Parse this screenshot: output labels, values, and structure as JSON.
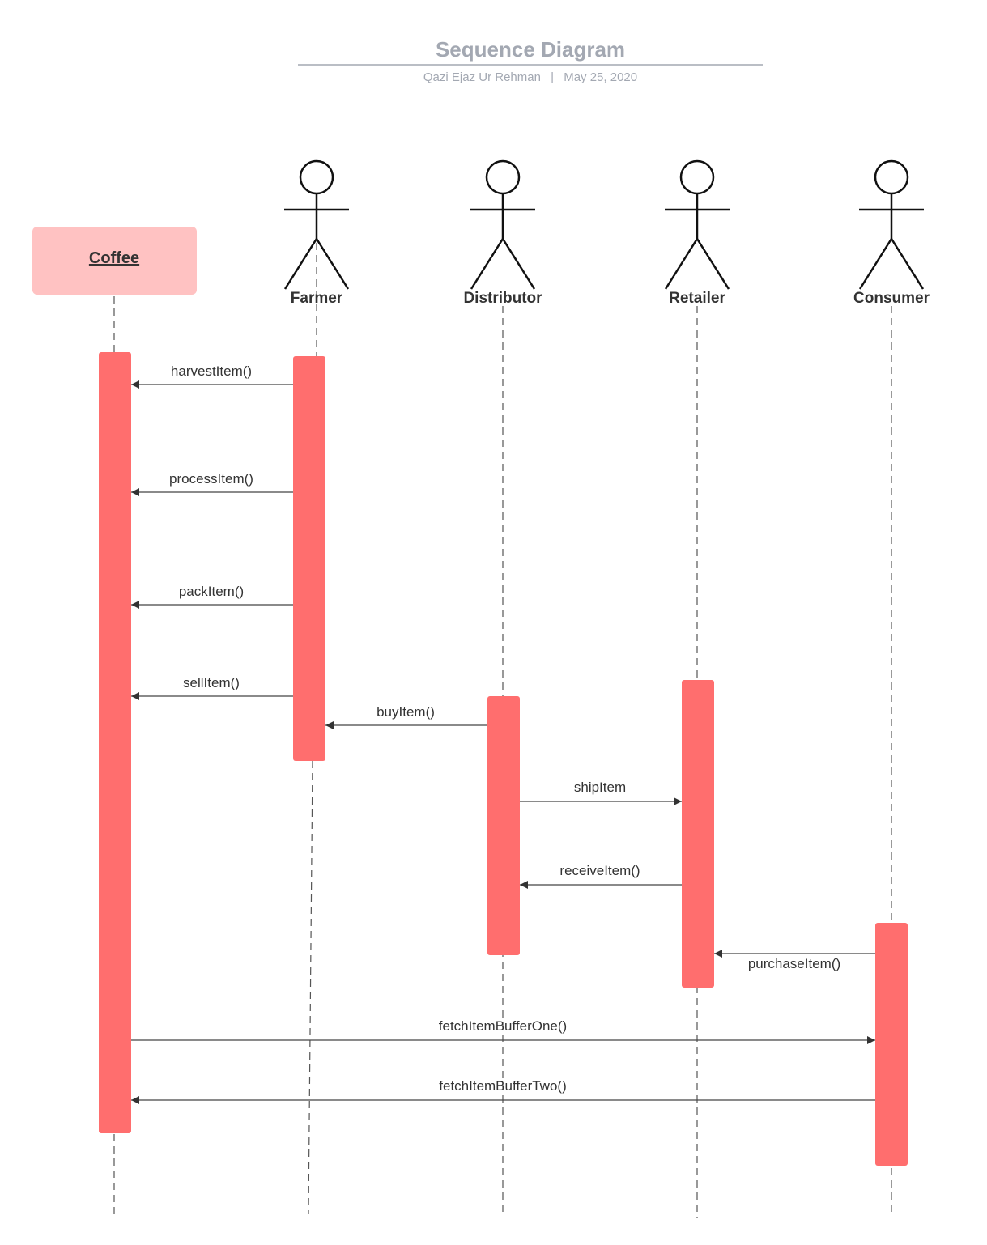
{
  "header": {
    "title": "Sequence Diagram",
    "author": "Qazi Ejaz Ur Rehman",
    "separator": "|",
    "date": "May 25, 2020"
  },
  "object": {
    "label": "Coffee",
    "fill": "#ffc2c2"
  },
  "actors": [
    {
      "id": "farmer",
      "label": "Farmer"
    },
    {
      "id": "distributor",
      "label": "Distributor"
    },
    {
      "id": "retailer",
      "label": "Retailer"
    },
    {
      "id": "consumer",
      "label": "Consumer"
    }
  ],
  "messages": [
    {
      "id": "harvest",
      "label": "harvestItem()",
      "from": "farmer",
      "to": "coffee"
    },
    {
      "id": "process",
      "label": "processItem()",
      "from": "farmer",
      "to": "coffee"
    },
    {
      "id": "pack",
      "label": "packItem()",
      "from": "farmer",
      "to": "coffee"
    },
    {
      "id": "sell",
      "label": "sellItem()",
      "from": "farmer",
      "to": "coffee"
    },
    {
      "id": "buy",
      "label": "buyItem()",
      "from": "distributor",
      "to": "farmer"
    },
    {
      "id": "ship",
      "label": "shipItem",
      "from": "distributor",
      "to": "retailer"
    },
    {
      "id": "receive",
      "label": "receiveItem()",
      "from": "retailer",
      "to": "distributor"
    },
    {
      "id": "purchase",
      "label": "purchaseItem()",
      "from": "consumer",
      "to": "retailer"
    },
    {
      "id": "fetch-one",
      "label": "fetchItemBufferOne()",
      "from": "coffee",
      "to": "consumer"
    },
    {
      "id": "fetch-two",
      "label": "fetchItemBufferTwo()",
      "from": "consumer",
      "to": "coffee"
    }
  ],
  "colors": {
    "activation": "#ff6e6e",
    "object_box": "#ffc2c2",
    "title": "#a3a8b2"
  }
}
